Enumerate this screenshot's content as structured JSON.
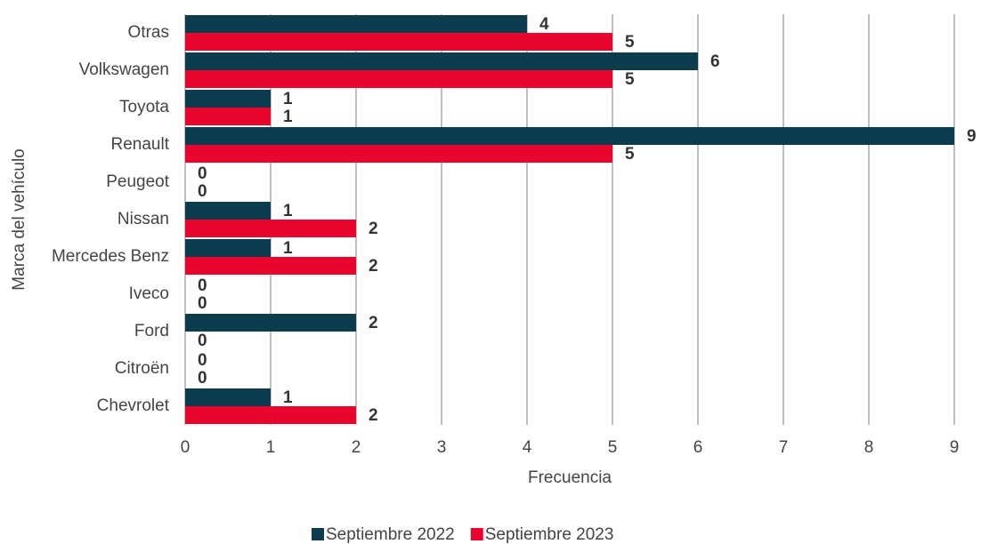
{
  "chart_data": {
    "type": "hbar",
    "x_label": "Frecuencia",
    "y_label": "Marca del vehículo",
    "categories": [
      "Otras",
      "Volkswagen",
      "Toyota",
      "Renault",
      "Peugeot",
      "Nissan",
      "Mercedes Benz",
      "Iveco",
      "Ford",
      "Citroën",
      "Chevrolet"
    ],
    "series": [
      {
        "name": "Septiembre 2022",
        "color": "#0c3c4e",
        "values": [
          4,
          6,
          1,
          9,
          0,
          1,
          1,
          0,
          2,
          0,
          1
        ]
      },
      {
        "name": "Septiembre 2023",
        "color": "#e8062e",
        "values": [
          5,
          5,
          1,
          5,
          0,
          2,
          2,
          0,
          0,
          0,
          2
        ]
      }
    ],
    "xlim": [
      0,
      9
    ],
    "xticks": [
      0,
      1,
      2,
      3,
      4,
      5,
      6,
      7,
      8,
      9
    ],
    "grid": true,
    "legend": "bottom"
  }
}
